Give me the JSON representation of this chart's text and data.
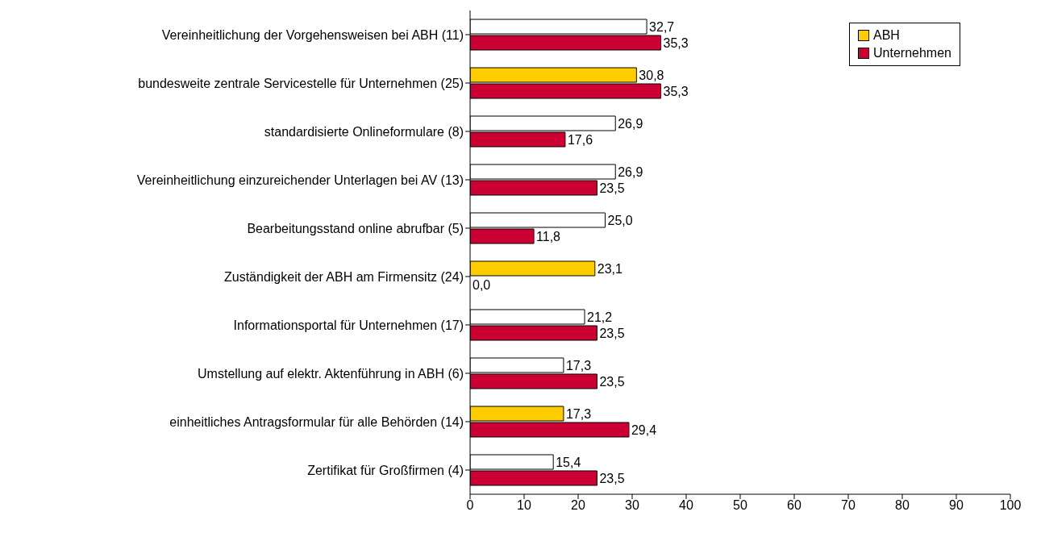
{
  "chart_data": {
    "type": "bar",
    "orientation": "horizontal",
    "categories": [
      "Vereinheitlichung der Vorgehensweisen bei ABH (11)",
      "bundesweite zentrale Servicestelle für Unternehmen (25)",
      "standardisierte Onlineformulare (8)",
      "Vereinheitlichung einzureichender Unterlagen bei AV (13)",
      "Bearbeitungsstand online abrufbar (5)",
      "Zuständigkeit der ABH am Firmensitz (24)",
      "Informationsportal für Unternehmen (17)",
      "Umstellung auf elektr. Aktenführung in ABH (6)",
      "einheitliches Antragsformular für alle Behörden (14)",
      "Zertifikat für Großfirmen (4)"
    ],
    "series": [
      {
        "name": "ABH",
        "color": "#ffcc00",
        "colors": [
          "#ffffff",
          "#ffcc00",
          "#ffffff",
          "#ffffff",
          "#ffffff",
          "#ffcc00",
          "#ffffff",
          "#ffffff",
          "#ffcc00",
          "#ffffff"
        ],
        "values": [
          32.7,
          30.8,
          26.9,
          26.9,
          25.0,
          23.1,
          21.2,
          17.3,
          17.3,
          15.4
        ],
        "value_labels": [
          "32,7",
          "30,8",
          "26,9",
          "26,9",
          "25,0",
          "23,1",
          "21,2",
          "17,3",
          "17,3",
          "15,4"
        ]
      },
      {
        "name": "Unternehmen",
        "color": "#cc0033",
        "values": [
          35.3,
          35.3,
          17.6,
          23.5,
          11.8,
          0.0,
          23.5,
          23.5,
          29.4,
          23.5
        ],
        "value_labels": [
          "35,3",
          "35,3",
          "17,6",
          "23,5",
          "11,8",
          "0,0",
          "23,5",
          "23,5",
          "29,4",
          "23,5"
        ]
      }
    ],
    "xlim": [
      0,
      100
    ],
    "xticks": [
      0,
      10,
      20,
      30,
      40,
      50,
      60,
      70,
      80,
      90,
      100
    ],
    "legend": "top right",
    "grid": false
  }
}
